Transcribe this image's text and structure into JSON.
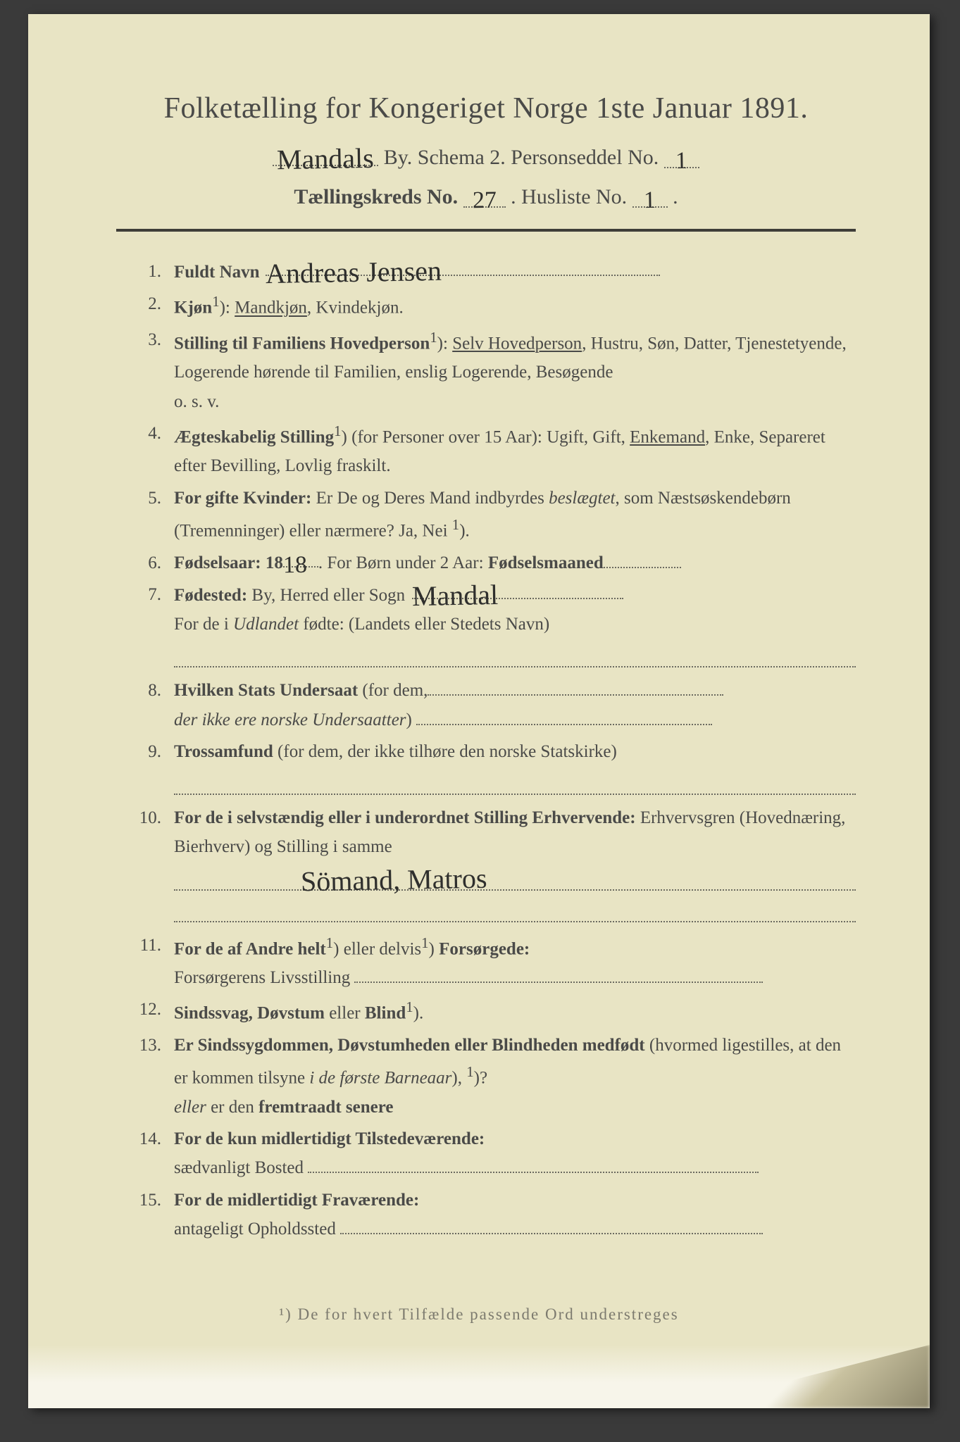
{
  "colors": {
    "paper": "#e8e4c4",
    "ink_printed": "#4a4a48",
    "ink_handwritten": "#2f2f2d",
    "dots": "#6b6a60",
    "rule": "#3e3d38"
  },
  "typography": {
    "title_fontsize_pt": 32,
    "body_fontsize_pt": 19,
    "handwriting_family": "cursive"
  },
  "header": {
    "title": "Folketælling for Kongeriget Norge 1ste Januar 1891.",
    "city_hw": "Mandals",
    "city_label_suffix": "By.   Schema 2.   Personseddel No.",
    "personseddel_no_hw": "1",
    "line2_prefix": "Tællingskreds No.",
    "taellingskreds_no_hw": "27",
    "line2_mid": ".   Husliste No.",
    "husliste_no_hw": "1",
    "line2_suffix": "."
  },
  "items": [
    {
      "n": "1.",
      "printed_start": "Fuldt Navn",
      "hw": "Andreas Jensen"
    },
    {
      "n": "2.",
      "printed_start": "Kjøn",
      "sup": "1",
      "printed_after_sup": "): ",
      "underlined": "Mandkjøn",
      "printed_tail": ", Kvindekjøn."
    },
    {
      "n": "3.",
      "printed_start": "Stilling til Familiens Hovedperson",
      "sup": "1",
      "printed_after_sup": "): ",
      "underlined": "Selv Hovedperson",
      "printed_tail": ", Hustru, Søn, Datter, Tjenestetyende, Logerende hørende til Familien, enslig Logerende, Besøgende",
      "extra_line": "o. s. v."
    },
    {
      "n": "4.",
      "printed_start": "Ægteskabelig Stilling",
      "sup": "1",
      "printed_after_sup": ") (for Personer over 15 Aar): Ugift, Gift, ",
      "underlined": "Enkemand",
      "printed_tail": ", Enke, Separeret efter Bevilling, Lovlig fraskilt."
    },
    {
      "n": "5.",
      "printed_start": "For ",
      "bold": "gifte Kvinder:",
      "printed_tail": " Er De og Deres Mand indbyrdes ",
      "italic": "beslægtet",
      "printed_tail2": ", som Næstsøskendebørn (Tremenninger) eller nærmere?  Ja, Nei ",
      "sup_tail": "1",
      "printed_tail3": ")."
    },
    {
      "n": "6.",
      "printed_start": "Fødselsaar: 18",
      "hw_inline": "18",
      "printed_mid": ".   For Børn under 2 Aar: ",
      "bold_mid": "Fødselsmaaned",
      "trail_dots_w": 110
    },
    {
      "n": "7.",
      "printed_start": "Fødested: ",
      "printed_mid2": "By, Herred eller Sogn",
      "hw_mid": "Mandal",
      "line2_printed": "For de i ",
      "line2_italic": "Udlandet",
      "line2_tail": " fødte: (Landets eller Stedets Navn)",
      "blank_dots": true
    },
    {
      "n": "8.",
      "printed_start": "Hvilken Stats ",
      "bold": "Undersaat",
      "printed_tail": " (for dem,",
      "line2_italic": "der ikke ere norske Undersaatter",
      "line2_tail": ")",
      "trail_dots_w": 420
    },
    {
      "n": "9.",
      "bold": "Trossamfund",
      "printed_tail": "  (for dem, der ikke tilhøre den norske Statskirke)",
      "blank_dots": true
    },
    {
      "n": "10.",
      "printed_start": "For de i selvstændig eller i underordnet Stilling ",
      "bold": "Erhvervende:",
      "printed_tail": " Erhvervsgren (Hovednæring, Bierhverv) og Stilling i samme",
      "blank_dots": true,
      "hw_on_dots": "Sömand,   Matros",
      "second_blank": true
    },
    {
      "n": "11.",
      "printed_start": "For de af Andre helt",
      "sup": "1",
      "printed_after_sup": ") eller delvis",
      "sup2": "1",
      "printed_after_sup2": ") ",
      "bold": "Forsørgede:",
      "line2_printed": "Forsørgerens Livsstilling",
      "trail_dots_w": 580
    },
    {
      "n": "12.",
      "bold": "Sindssvag, Døvstum",
      "printed_tail": " eller ",
      "bold2": "Blind",
      "sup_tail": "1",
      "printed_tail3": ")."
    },
    {
      "n": "13.",
      "printed_start": "Er Sindssygdommen, Døvstumheden eller Blindheden ",
      "bold": "medfødt",
      "printed_tail": " (hvormed ligestilles, at den er kommen tilsyne ",
      "italic": "i de første Barneaar",
      "printed_tail2": "), ",
      "line2_italic": "eller",
      "line2_tail": " er den ",
      "line2_bold": "fremtraadt senere",
      "sup_tail": "1",
      "printed_tail3": ")?"
    },
    {
      "n": "14.",
      "printed_start": "For de kun ",
      "bold": "midlertidigt Tilstedeværende:",
      "line2_printed": "sædvanligt Bosted",
      "trail_dots_w": 640
    },
    {
      "n": "15.",
      "printed_start": "For de ",
      "bold": "midlertidigt Fraværende:",
      "line2_printed": "antageligt Opholdssted",
      "trail_dots_w": 600
    }
  ],
  "footnote": "¹) De for hvert Tilfælde passende Ord understreges"
}
